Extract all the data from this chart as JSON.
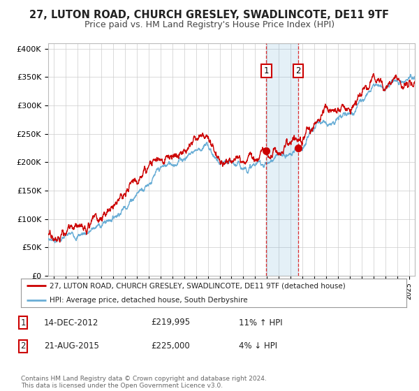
{
  "title": "27, LUTON ROAD, CHURCH GRESLEY, SWADLINCOTE, DE11 9TF",
  "subtitle": "Price paid vs. HM Land Registry's House Price Index (HPI)",
  "ylabel_ticks": [
    "£0",
    "£50K",
    "£100K",
    "£150K",
    "£200K",
    "£250K",
    "£300K",
    "£350K",
    "£400K"
  ],
  "ytick_vals": [
    0,
    50000,
    100000,
    150000,
    200000,
    250000,
    300000,
    350000,
    400000
  ],
  "ylim": [
    0,
    410000
  ],
  "xlim_start": 1994.5,
  "xlim_end": 2025.5,
  "hpi_color": "#6aaed6",
  "price_color": "#cc0000",
  "sale1_date": "14-DEC-2012",
  "sale1_price": 219995,
  "sale1_hpi_text": "11% ↑ HPI",
  "sale1_year": 2012.95,
  "sale2_date": "21-AUG-2015",
  "sale2_price": 225000,
  "sale2_hpi_text": "4% ↓ HPI",
  "sale2_year": 2015.63,
  "legend_label1": "27, LUTON ROAD, CHURCH GRESLEY, SWADLINCOTE, DE11 9TF (detached house)",
  "legend_label2": "HPI: Average price, detached house, South Derbyshire",
  "footnote": "Contains HM Land Registry data © Crown copyright and database right 2024.\nThis data is licensed under the Open Government Licence v3.0.",
  "background_color": "#ffffff",
  "grid_color": "#cccccc",
  "title_fontsize": 10.5,
  "subtitle_fontsize": 9
}
